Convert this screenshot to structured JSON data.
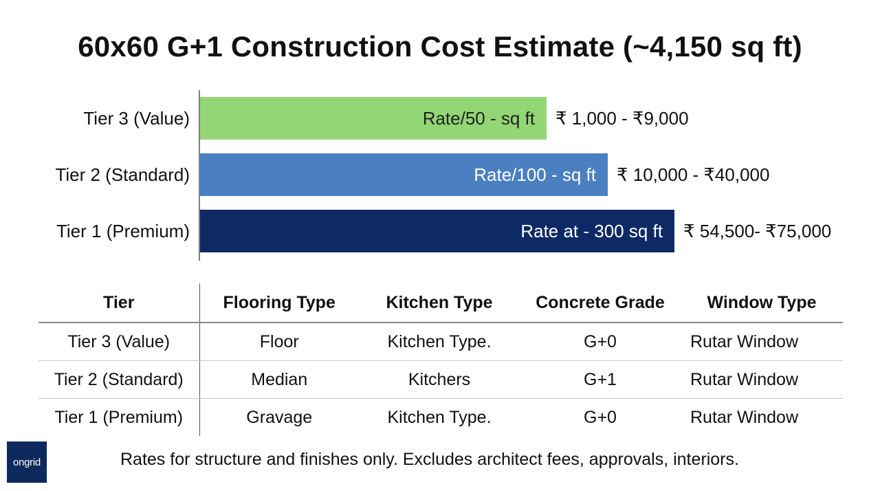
{
  "title": "60x60 G+1 Construction Cost Estimate (~4,150 sq ft)",
  "chart_data": {
    "type": "bar",
    "orientation": "horizontal",
    "categories": [
      "Tier 3 (Value)",
      "Tier 2 (Standard)",
      "Tier 1 (Premium)"
    ],
    "bar_labels": [
      "Rate/50 - sq ft",
      "Rate/100 - sq ft",
      "Rate at - 300 sq ft"
    ],
    "value_labels": [
      "₹ 1,000 - ₹9,000",
      "₹ 10,000 - ₹40,000",
      "₹ 54,500- ₹75,000"
    ],
    "relative_length": [
      0.73,
      0.86,
      1.0
    ],
    "colors": [
      "#93d675",
      "#4a7fc1",
      "#0e2a66"
    ],
    "label_colors": [
      "#222222",
      "#ffffff",
      "#ffffff"
    ],
    "grid": false
  },
  "table": {
    "headers": [
      "Tier",
      "Flooring Type",
      "Kitchen Type",
      "Concrete Grade",
      "Window Type"
    ],
    "rows": [
      [
        "Tier 3 (Value)",
        "Floor",
        "Kitchen  Type.",
        "G+0",
        "Rutar Window"
      ],
      [
        "Tier 2 (Standard)",
        "Median",
        "Kitchers",
        "G+1",
        "Rutar Window"
      ],
      [
        "Tier 1 (Premium)",
        "Gravage",
        "Kitchen  Type.",
        "G+0",
        "Rutar Window"
      ]
    ]
  },
  "logo_text": "ongrid",
  "footnote": "Rates for structure and finishes only. Excludes architect fees, approvals, interiors."
}
